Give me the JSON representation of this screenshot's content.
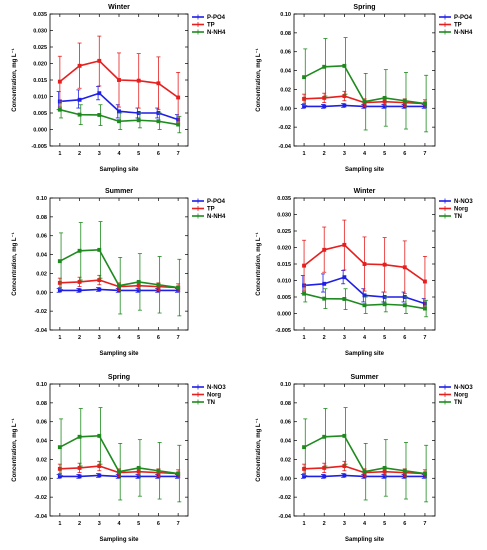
{
  "colors": {
    "blue": "#1f1fe6",
    "red": "#e61f1f",
    "green": "#1f8a1f"
  },
  "chart_data": [
    {
      "type": "line",
      "title": "Winter",
      "xlabel": "Sampling site",
      "ylabel": "Concentration, mg L⁻¹",
      "categories": [
        "1",
        "2",
        "3",
        "4",
        "5",
        "6",
        "7"
      ],
      "xlim": [
        0.5,
        7.5
      ],
      "ylim": [
        -0.005,
        0.035
      ],
      "yticks": [
        -0.005,
        0.0,
        0.005,
        0.01,
        0.015,
        0.02,
        0.025,
        0.03,
        0.035
      ],
      "ytick_labels": [
        "-0.005",
        "0.000",
        "0.005",
        "0.010",
        "0.015",
        "0.020",
        "0.025",
        "0.030",
        "0.035"
      ],
      "legend": "top-right",
      "series": [
        {
          "name": "P-PO4",
          "color": "blue",
          "values": [
            0.0085,
            0.009,
            0.011,
            0.0055,
            0.005,
            0.005,
            0.003
          ],
          "err_low": [
            0.006,
            0.0065,
            0.009,
            0.0035,
            0.0035,
            0.0035,
            0.0015
          ],
          "err_high": [
            0.0115,
            0.012,
            0.013,
            0.0075,
            0.0065,
            0.0065,
            0.0045
          ]
        },
        {
          "name": "TP",
          "color": "red",
          "values": [
            0.0145,
            0.0193,
            0.0208,
            0.015,
            0.0148,
            0.014,
            0.0097
          ],
          "err_low": [
            0.0068,
            0.0125,
            0.0132,
            0.0068,
            0.0065,
            0.006,
            0.002
          ],
          "err_high": [
            0.0222,
            0.0262,
            0.0283,
            0.0232,
            0.023,
            0.022,
            0.0173
          ]
        },
        {
          "name": "N-NH4",
          "color": "green",
          "values": [
            0.006,
            0.0045,
            0.0044,
            0.0025,
            0.0028,
            0.0025,
            0.0015
          ],
          "err_low": [
            0.0035,
            0.0015,
            0.0012,
            0.0,
            0.0005,
            0.0,
            -0.001
          ],
          "err_high": [
            0.0085,
            0.0075,
            0.0075,
            0.005,
            0.005,
            0.005,
            0.004
          ]
        }
      ]
    },
    {
      "type": "line",
      "title": "Spring",
      "xlabel": "Sampling site",
      "ylabel": "Concentration, mg L⁻¹",
      "categories": [
        "1",
        "2",
        "3",
        "4",
        "5",
        "6",
        "7"
      ],
      "xlim": [
        0.5,
        7.5
      ],
      "ylim": [
        -0.04,
        0.1
      ],
      "yticks": [
        -0.04,
        -0.02,
        0.0,
        0.02,
        0.04,
        0.06,
        0.08,
        0.1
      ],
      "ytick_labels": [
        "-0.04",
        "-0.02",
        "0.00",
        "0.02",
        "0.04",
        "0.06",
        "0.08",
        "0.10"
      ],
      "legend": "top-right",
      "series": [
        {
          "name": "P-PO4",
          "color": "blue",
          "values": [
            0.002,
            0.002,
            0.003,
            0.002,
            0.002,
            0.002,
            0.002
          ],
          "err_low": [
            0.0,
            0.0,
            0.001,
            0.0,
            0.0,
            0.0,
            0.0
          ],
          "err_high": [
            0.004,
            0.004,
            0.005,
            0.004,
            0.004,
            0.004,
            0.004
          ]
        },
        {
          "name": "TP",
          "color": "red",
          "values": [
            0.01,
            0.011,
            0.013,
            0.006,
            0.007,
            0.006,
            0.005
          ],
          "err_low": [
            0.005,
            0.006,
            0.008,
            0.002,
            0.003,
            0.002,
            0.001
          ],
          "err_high": [
            0.015,
            0.016,
            0.018,
            0.01,
            0.011,
            0.01,
            0.009
          ]
        },
        {
          "name": "N-NH4",
          "color": "green",
          "values": [
            0.033,
            0.044,
            0.045,
            0.007,
            0.011,
            0.008,
            0.005
          ],
          "err_low": [
            0.003,
            0.013,
            0.015,
            -0.023,
            -0.019,
            -0.022,
            -0.025
          ],
          "err_high": [
            0.063,
            0.074,
            0.075,
            0.037,
            0.041,
            0.038,
            0.035
          ]
        }
      ]
    },
    {
      "type": "line",
      "title": "Summer",
      "xlabel": "Sampling site",
      "ylabel": "Concentration, mg L⁻¹",
      "categories": [
        "1",
        "2",
        "3",
        "4",
        "5",
        "6",
        "7"
      ],
      "xlim": [
        0.5,
        7.5
      ],
      "ylim": [
        -0.04,
        0.1
      ],
      "yticks": [
        -0.04,
        -0.02,
        0.0,
        0.02,
        0.04,
        0.06,
        0.08,
        0.1
      ],
      "ytick_labels": [
        "-0.04",
        "-0.02",
        "0.00",
        "0.02",
        "0.04",
        "0.06",
        "0.08",
        "0.10"
      ],
      "legend": "top-right",
      "series": [
        {
          "name": "P-PO4",
          "color": "blue",
          "values": [
            0.002,
            0.002,
            0.003,
            0.002,
            0.002,
            0.002,
            0.002
          ],
          "err_low": [
            0.0,
            0.0,
            0.001,
            0.0,
            0.0,
            0.0,
            0.0
          ],
          "err_high": [
            0.004,
            0.004,
            0.005,
            0.004,
            0.004,
            0.004,
            0.004
          ]
        },
        {
          "name": "TP",
          "color": "red",
          "values": [
            0.01,
            0.011,
            0.013,
            0.006,
            0.007,
            0.006,
            0.005
          ],
          "err_low": [
            0.005,
            0.006,
            0.008,
            0.002,
            0.003,
            0.002,
            0.001
          ],
          "err_high": [
            0.015,
            0.016,
            0.018,
            0.01,
            0.011,
            0.01,
            0.009
          ]
        },
        {
          "name": "N-NH4",
          "color": "green",
          "values": [
            0.033,
            0.044,
            0.045,
            0.007,
            0.011,
            0.008,
            0.005
          ],
          "err_low": [
            0.003,
            0.013,
            0.015,
            -0.023,
            -0.019,
            -0.022,
            -0.025
          ],
          "err_high": [
            0.063,
            0.074,
            0.075,
            0.037,
            0.041,
            0.038,
            0.035
          ]
        }
      ]
    },
    {
      "type": "line",
      "title": "Winter",
      "xlabel": "Sampling site",
      "ylabel": "Concentration, mg L⁻¹",
      "categories": [
        "1",
        "2",
        "3",
        "4",
        "5",
        "6",
        "7"
      ],
      "xlim": [
        0.5,
        7.5
      ],
      "ylim": [
        -0.005,
        0.035
      ],
      "yticks": [
        -0.005,
        0.0,
        0.005,
        0.01,
        0.015,
        0.02,
        0.025,
        0.03,
        0.035
      ],
      "ytick_labels": [
        "-0.005",
        "0.000",
        "0.005",
        "0.010",
        "0.015",
        "0.020",
        "0.025",
        "0.030",
        "0.035"
      ],
      "legend": "top-right",
      "series": [
        {
          "name": "N-NO3",
          "color": "blue",
          "values": [
            0.0085,
            0.009,
            0.011,
            0.0055,
            0.005,
            0.005,
            0.003
          ],
          "err_low": [
            0.006,
            0.0065,
            0.009,
            0.0035,
            0.0035,
            0.0035,
            0.0015
          ],
          "err_high": [
            0.0115,
            0.012,
            0.013,
            0.0075,
            0.0065,
            0.0065,
            0.0045
          ]
        },
        {
          "name": "Norg",
          "color": "red",
          "values": [
            0.0145,
            0.0193,
            0.0208,
            0.015,
            0.0148,
            0.014,
            0.0097
          ],
          "err_low": [
            0.0068,
            0.0125,
            0.0132,
            0.0068,
            0.0065,
            0.006,
            0.002
          ],
          "err_high": [
            0.0222,
            0.0262,
            0.0283,
            0.0232,
            0.023,
            0.022,
            0.0173
          ]
        },
        {
          "name": "TN",
          "color": "green",
          "values": [
            0.006,
            0.0045,
            0.0044,
            0.0025,
            0.0028,
            0.0025,
            0.0015
          ],
          "err_low": [
            0.0035,
            0.0015,
            0.0012,
            0.0,
            0.0005,
            0.0,
            -0.001
          ],
          "err_high": [
            0.0085,
            0.0075,
            0.0075,
            0.005,
            0.005,
            0.005,
            0.004
          ]
        }
      ]
    },
    {
      "type": "line",
      "title": "Spring",
      "xlabel": "Sampling site",
      "ylabel": "Concentration, mg L⁻¹",
      "categories": [
        "1",
        "2",
        "3",
        "4",
        "5",
        "6",
        "7"
      ],
      "xlim": [
        0.5,
        7.5
      ],
      "ylim": [
        -0.04,
        0.1
      ],
      "yticks": [
        -0.04,
        -0.02,
        0.0,
        0.02,
        0.04,
        0.06,
        0.08,
        0.1
      ],
      "ytick_labels": [
        "-0.04",
        "-0.02",
        "0.00",
        "0.02",
        "0.04",
        "0.06",
        "0.08",
        "0.10"
      ],
      "legend": "top-right",
      "series": [
        {
          "name": "N-NO3",
          "color": "blue",
          "values": [
            0.002,
            0.002,
            0.003,
            0.002,
            0.002,
            0.002,
            0.002
          ],
          "err_low": [
            0.0,
            0.0,
            0.001,
            0.0,
            0.0,
            0.0,
            0.0
          ],
          "err_high": [
            0.004,
            0.004,
            0.005,
            0.004,
            0.004,
            0.004,
            0.004
          ]
        },
        {
          "name": "Norg",
          "color": "red",
          "values": [
            0.01,
            0.011,
            0.013,
            0.006,
            0.007,
            0.006,
            0.005
          ],
          "err_low": [
            0.005,
            0.006,
            0.008,
            0.002,
            0.003,
            0.002,
            0.001
          ],
          "err_high": [
            0.015,
            0.016,
            0.018,
            0.01,
            0.011,
            0.01,
            0.009
          ]
        },
        {
          "name": "TN",
          "color": "green",
          "values": [
            0.033,
            0.044,
            0.045,
            0.007,
            0.011,
            0.008,
            0.005
          ],
          "err_low": [
            0.003,
            0.013,
            0.015,
            -0.023,
            -0.019,
            -0.022,
            -0.025
          ],
          "err_high": [
            0.063,
            0.074,
            0.075,
            0.037,
            0.041,
            0.038,
            0.035
          ]
        }
      ]
    },
    {
      "type": "line",
      "title": "Summer",
      "xlabel": "Sampling site",
      "ylabel": "Concentration, mg L⁻¹",
      "categories": [
        "1",
        "2",
        "3",
        "4",
        "5",
        "6",
        "7"
      ],
      "xlim": [
        0.5,
        7.5
      ],
      "ylim": [
        -0.04,
        0.1
      ],
      "yticks": [
        -0.04,
        -0.02,
        0.0,
        0.02,
        0.04,
        0.06,
        0.08,
        0.1
      ],
      "ytick_labels": [
        "-0.04",
        "-0.02",
        "0.00",
        "0.02",
        "0.04",
        "0.06",
        "0.08",
        "0.10"
      ],
      "legend": "top-right",
      "series": [
        {
          "name": "N-NO3",
          "color": "blue",
          "values": [
            0.002,
            0.002,
            0.003,
            0.002,
            0.002,
            0.002,
            0.002
          ],
          "err_low": [
            0.0,
            0.0,
            0.001,
            0.0,
            0.0,
            0.0,
            0.0
          ],
          "err_high": [
            0.004,
            0.004,
            0.005,
            0.004,
            0.004,
            0.004,
            0.004
          ]
        },
        {
          "name": "Norg",
          "color": "red",
          "values": [
            0.01,
            0.011,
            0.013,
            0.006,
            0.007,
            0.006,
            0.005
          ],
          "err_low": [
            0.005,
            0.006,
            0.008,
            0.002,
            0.003,
            0.002,
            0.001
          ],
          "err_high": [
            0.015,
            0.016,
            0.018,
            0.01,
            0.011,
            0.01,
            0.009
          ]
        },
        {
          "name": "TN",
          "color": "green",
          "values": [
            0.033,
            0.044,
            0.045,
            0.007,
            0.011,
            0.008,
            0.005
          ],
          "err_low": [
            0.003,
            0.013,
            0.015,
            -0.023,
            -0.019,
            -0.022,
            -0.025
          ],
          "err_high": [
            0.063,
            0.074,
            0.075,
            0.037,
            0.041,
            0.038,
            0.035
          ]
        }
      ]
    }
  ]
}
